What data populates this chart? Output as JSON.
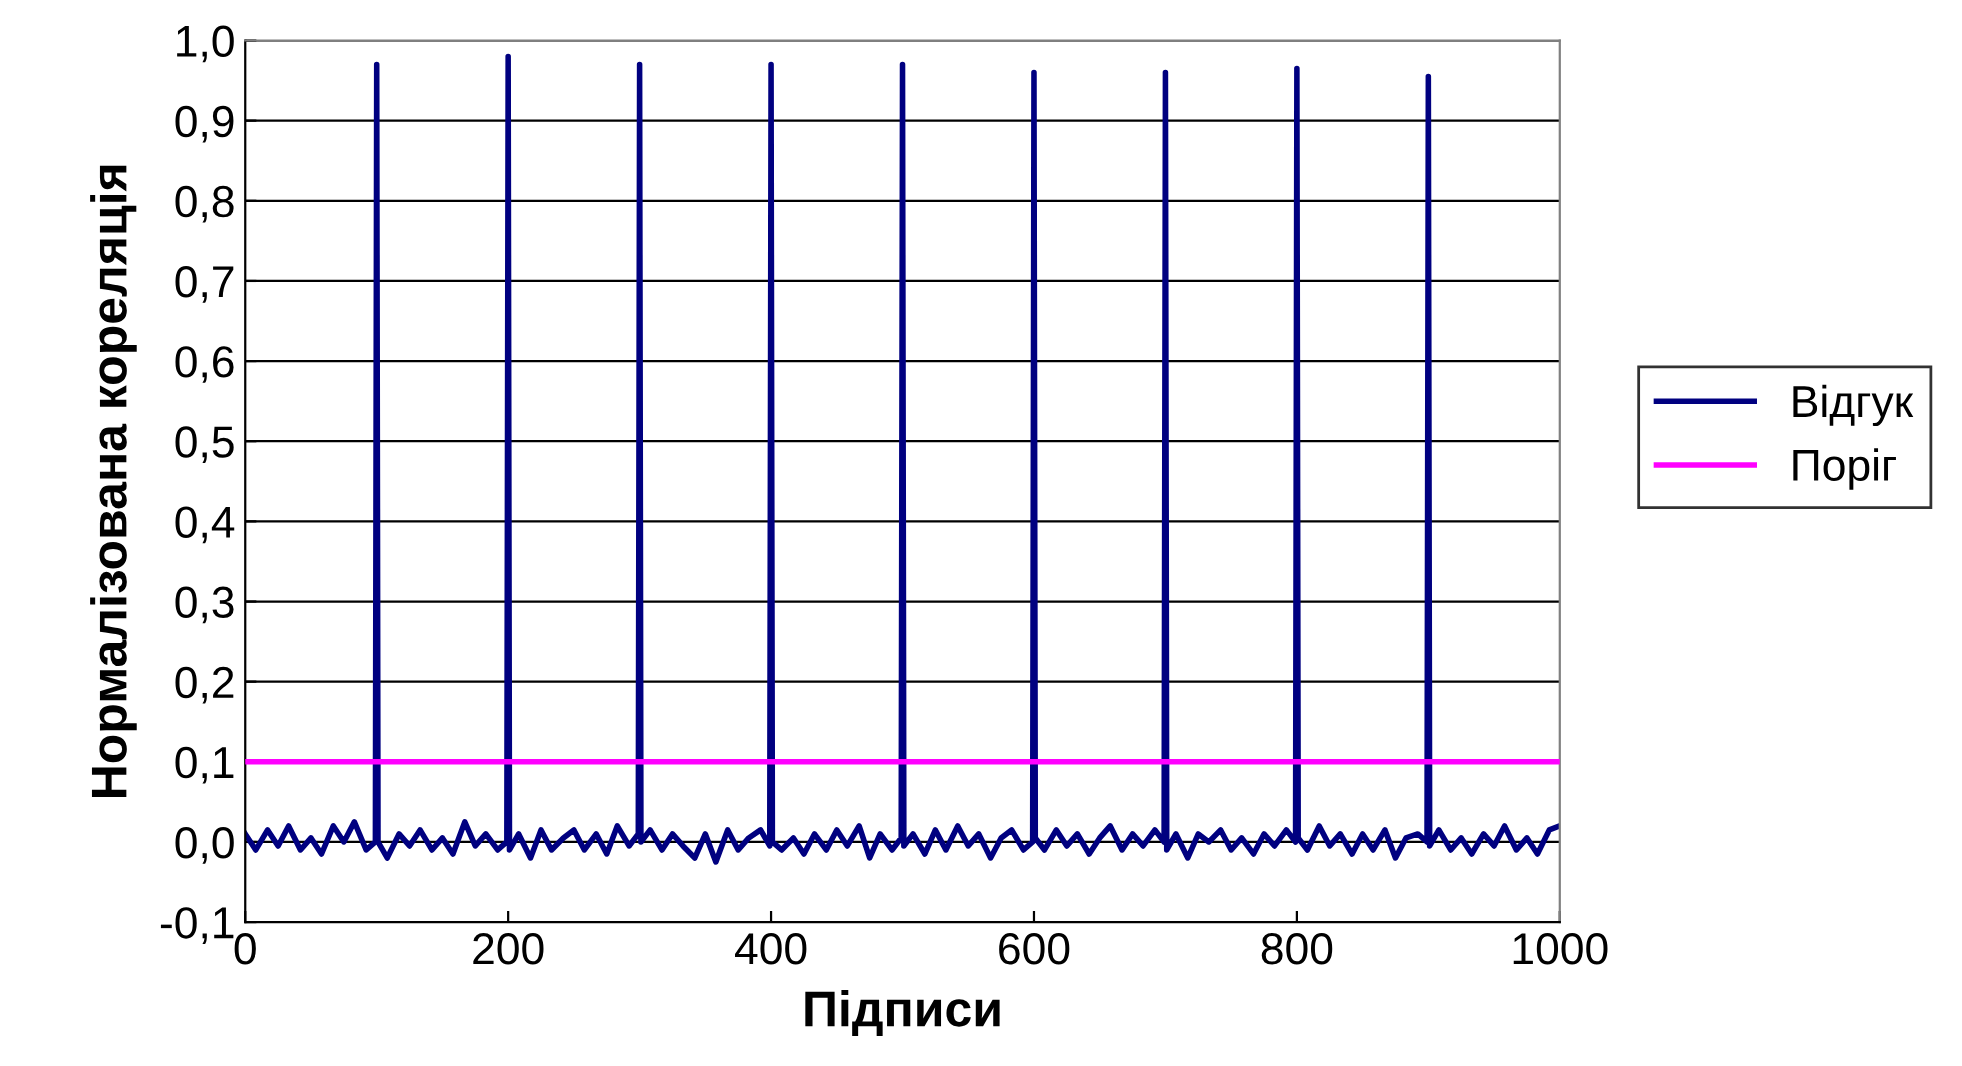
{
  "chart_data": {
    "type": "line",
    "xlabel": "Підписи",
    "ylabel": "Нормалізована кореляція",
    "xlim": [
      0,
      1000
    ],
    "xticks": [
      0,
      200,
      400,
      600,
      800,
      1000
    ],
    "ylim": [
      -0.1,
      1.0
    ],
    "yticks": [
      {
        "value": -0.1,
        "label": "-0,1"
      },
      {
        "value": 0.0,
        "label": "0,0"
      },
      {
        "value": 0.1,
        "label": "0,1"
      },
      {
        "value": 0.2,
        "label": "0,2"
      },
      {
        "value": 0.3,
        "label": "0,3"
      },
      {
        "value": 0.4,
        "label": "0,4"
      },
      {
        "value": 0.5,
        "label": "0,5"
      },
      {
        "value": 0.6,
        "label": "0,6"
      },
      {
        "value": 0.7,
        "label": "0,7"
      },
      {
        "value": 0.8,
        "label": "0,8"
      },
      {
        "value": 0.9,
        "label": "0,9"
      },
      {
        "value": 1.0,
        "label": "1,0"
      }
    ],
    "grid": "y",
    "legend": "right",
    "marker": "none",
    "line_style": "solid",
    "series": [
      {
        "name": "Відгук",
        "color": "#000080",
        "x": [
          0,
          8,
          17,
          25,
          33,
          42,
          50,
          58,
          67,
          75,
          83,
          92,
          99,
          100,
          101,
          108,
          117,
          125,
          133,
          142,
          150,
          158,
          167,
          175,
          183,
          192,
          199,
          200,
          201,
          208,
          217,
          225,
          233,
          242,
          250,
          258,
          267,
          275,
          283,
          292,
          299,
          300,
          301,
          308,
          317,
          325,
          333,
          342,
          350,
          358,
          367,
          375,
          383,
          392,
          399,
          400,
          401,
          408,
          417,
          425,
          433,
          442,
          450,
          458,
          467,
          475,
          483,
          492,
          499,
          500,
          501,
          508,
          517,
          525,
          533,
          542,
          550,
          558,
          567,
          575,
          583,
          592,
          599,
          600,
          601,
          608,
          617,
          625,
          633,
          642,
          650,
          658,
          667,
          675,
          683,
          692,
          699,
          700,
          701,
          708,
          717,
          725,
          733,
          742,
          750,
          758,
          767,
          775,
          783,
          792,
          799,
          800,
          801,
          808,
          817,
          825,
          833,
          842,
          850,
          858,
          867,
          875,
          883,
          892,
          899,
          900,
          901,
          908,
          917,
          925,
          933,
          942,
          950,
          958,
          967,
          975,
          983,
          992,
          1000
        ],
        "values": [
          0.01,
          -0.01,
          0.015,
          -0.005,
          0.02,
          -0.01,
          0.005,
          -0.015,
          0.02,
          0.0,
          0.025,
          -0.01,
          0.0,
          0.97,
          0.0,
          -0.02,
          0.01,
          -0.005,
          0.015,
          -0.01,
          0.005,
          -0.015,
          0.025,
          -0.005,
          0.01,
          -0.01,
          0.0,
          0.98,
          -0.01,
          0.01,
          -0.02,
          0.015,
          -0.01,
          0.005,
          0.015,
          -0.01,
          0.01,
          -0.015,
          0.02,
          -0.005,
          0.01,
          0.97,
          0.0,
          0.015,
          -0.01,
          0.01,
          -0.005,
          -0.02,
          0.01,
          -0.025,
          0.015,
          -0.01,
          0.005,
          0.015,
          -0.005,
          0.97,
          0.0,
          -0.01,
          0.005,
          -0.015,
          0.01,
          -0.01,
          0.015,
          -0.005,
          0.02,
          -0.02,
          0.01,
          -0.01,
          0.005,
          0.97,
          -0.005,
          0.01,
          -0.015,
          0.015,
          -0.01,
          0.02,
          -0.005,
          0.01,
          -0.02,
          0.005,
          0.015,
          -0.01,
          0.0,
          0.96,
          0.005,
          -0.01,
          0.015,
          -0.005,
          0.01,
          -0.015,
          0.005,
          0.02,
          -0.01,
          0.01,
          -0.005,
          0.015,
          0.0,
          0.96,
          -0.01,
          0.01,
          -0.02,
          0.01,
          0.0,
          0.015,
          -0.01,
          0.005,
          -0.015,
          0.01,
          -0.005,
          0.015,
          0.0,
          0.965,
          0.005,
          -0.01,
          0.02,
          -0.005,
          0.01,
          -0.015,
          0.01,
          -0.01,
          0.015,
          -0.02,
          0.005,
          0.01,
          0.0,
          0.955,
          -0.005,
          0.015,
          -0.01,
          0.005,
          -0.015,
          0.01,
          -0.005,
          0.02,
          -0.01,
          0.005,
          -0.015,
          0.015,
          0.02
        ]
      },
      {
        "name": "Поріг",
        "color": "#ff00ff",
        "x": [
          0,
          1000
        ],
        "values": [
          0.1,
          0.1
        ]
      }
    ]
  }
}
